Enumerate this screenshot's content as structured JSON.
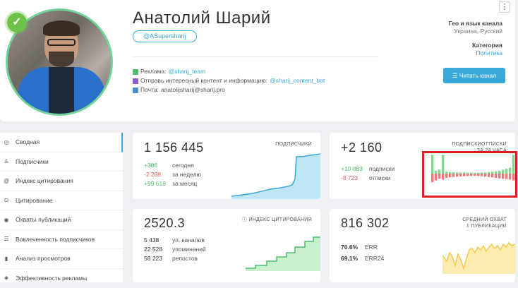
{
  "profile": {
    "name": "Анатолий Шарий",
    "handle": "@ASupersharij",
    "ads_label": "Реклама:",
    "ads_link": "@sharij_team",
    "send_label": "Отправь интересный контент и информацию:",
    "send_link": "@sharij_content_bot",
    "mail_label": "Почта:",
    "mail_value": "anatolijsharij@sharij.pro",
    "geo_title": "Гео и язык канала",
    "geo_value": "Украина, Русский",
    "cat_title": "Категория",
    "cat_value": "Политика",
    "read_button": "Читать канал",
    "more_button": "⋮",
    "verified_icon": "✓"
  },
  "sidebar": {
    "items": [
      {
        "icon": "◎",
        "label": "Сводная"
      },
      {
        "icon": "♙",
        "label": "Подписчики"
      },
      {
        "icon": "@",
        "label": "Индекс цитирования"
      },
      {
        "icon": "⊙",
        "label": "Цитирование"
      },
      {
        "icon": "◉",
        "label": "Охваты публикаций"
      },
      {
        "icon": "☰",
        "label": "Вовлеченность подписчиков"
      },
      {
        "icon": "▮",
        "label": "Анализ просмотров"
      },
      {
        "icon": "◈",
        "label": "Эффективность рекламы"
      }
    ]
  },
  "cards": {
    "subscribers": {
      "value": "1 156 445",
      "title": "ПОДПИСЧИКИ",
      "rows": [
        {
          "num": "+386",
          "label": "сегодня",
          "tone": "pos"
        },
        {
          "num": "-2 288",
          "label": "за неделю",
          "tone": "neg"
        },
        {
          "num": "+99 618",
          "label": "за месяц",
          "tone": "pos"
        }
      ],
      "line_color": "#3aa8d8",
      "fill_color": "#bfe6f5"
    },
    "subs_unsubs": {
      "value": "+2 160",
      "title_1": "ПОДПИСКИ",
      "title_2": "ОТПИСКИ",
      "period": "ЗА 24 ЧАСА",
      "rows": [
        {
          "num": "+10 883",
          "label": "подписки",
          "tone": "pos"
        },
        {
          "num": "-8 723",
          "label": "отписки",
          "tone": "neg"
        }
      ],
      "pos_color": "#7fdc8a",
      "neg_color": "#f07a7a"
    },
    "citation": {
      "value": "2520.3",
      "title": "ИНДЕКС ЦИТИРОВАНИЯ",
      "title_icon": "ⓘ",
      "rows": [
        {
          "num": "5 438",
          "label": "уп. каналов"
        },
        {
          "num": "22 528",
          "label": "упоминаний"
        },
        {
          "num": "58 223",
          "label": "репостов"
        }
      ],
      "line_color": "#4bbf6b",
      "fill_color": "#c9efcf"
    },
    "reach": {
      "value": "816 302",
      "title_1": "СРЕДНИЙ ОХВАТ",
      "title_2": "1 ПУБЛИКАЦИИ",
      "rows": [
        {
          "num": "70.6%",
          "label": "ERR"
        },
        {
          "num": "69.1%",
          "label": "ERR24"
        }
      ],
      "line_color": "#f2c94c",
      "fill_color": "#fcebb0"
    }
  },
  "colors": {
    "accent": "#3aa8d8",
    "positive": "#4bbf6b",
    "negative": "#e15b5b",
    "highlight": "#d91f1f"
  }
}
